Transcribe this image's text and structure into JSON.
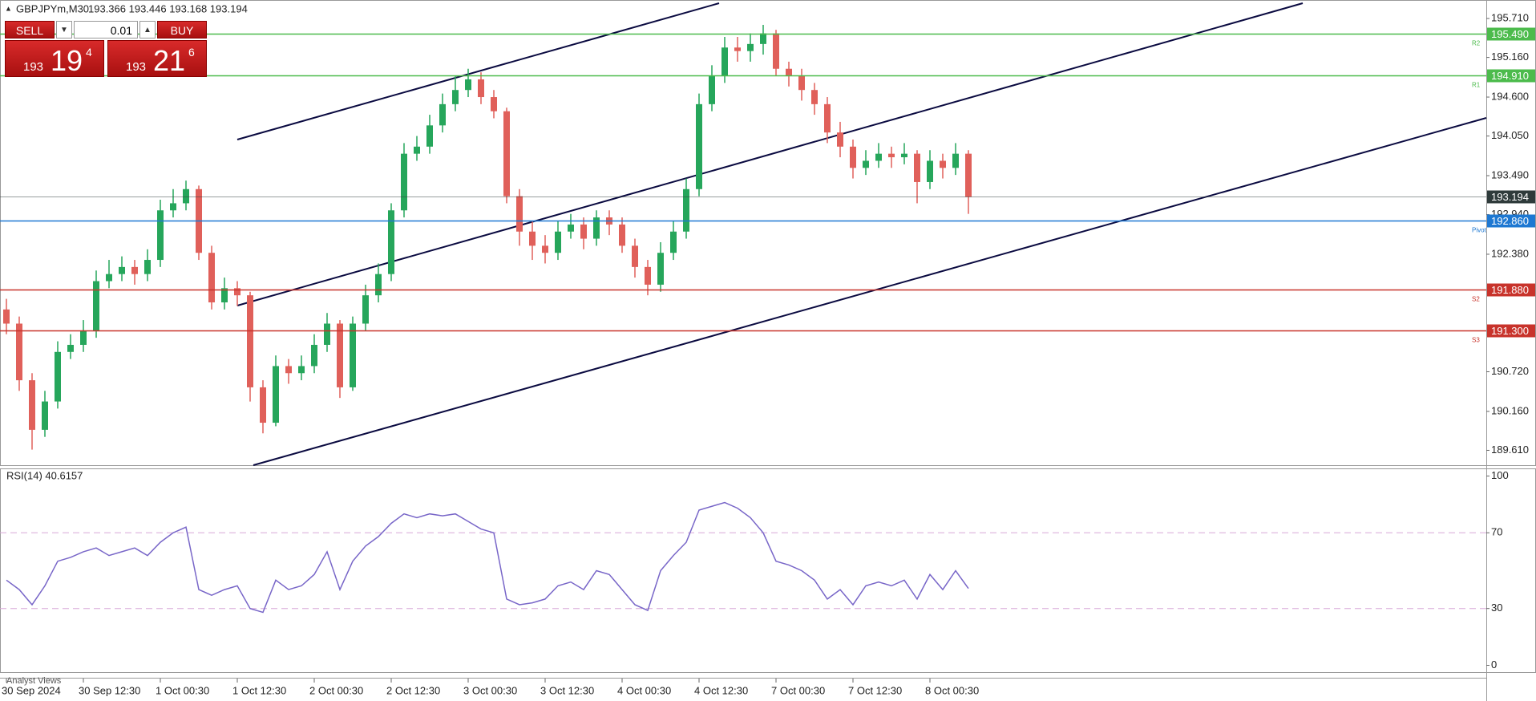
{
  "toolbar": {
    "symbol": "GBPJPYm,M30",
    "quote": "193.366 193.446 193.168 193.194"
  },
  "trade_panel": {
    "sell": "SELL",
    "lot": "0.01",
    "buy": "BUY",
    "bid": {
      "big": "193",
      "main": "19",
      "pip": "4"
    },
    "ask": {
      "big": "193",
      "main": "21",
      "pip": "6"
    }
  },
  "bottom_tab": "Analyst Views",
  "chart_data": [
    {
      "type": "candlestick",
      "categories": [
        "30 Sep 2024",
        null,
        null,
        null,
        null,
        null,
        "30 Sep 12:30",
        null,
        null,
        null,
        null,
        null,
        "1 Oct 00:30",
        null,
        null,
        null,
        null,
        null,
        "1 Oct 12:30",
        null,
        null,
        null,
        null,
        null,
        "2 Oct 00:30",
        null,
        null,
        null,
        null,
        null,
        "2 Oct 12:30",
        null,
        null,
        null,
        null,
        null,
        "3 Oct 00:30",
        null,
        null,
        null,
        null,
        null,
        "3 Oct 12:30",
        null,
        null,
        null,
        null,
        null,
        "4 Oct 00:30",
        null,
        null,
        null,
        null,
        null,
        "4 Oct 12:30",
        null,
        null,
        null,
        null,
        null,
        "7 Oct 00:30",
        null,
        null,
        null,
        null,
        null,
        "7 Oct 12:30",
        null,
        null,
        null,
        null,
        null,
        "8 Oct 00:30",
        null,
        null,
        null
      ],
      "open": [
        191.6,
        191.4,
        190.6,
        189.9,
        190.3,
        191.0,
        191.1,
        191.3,
        192.0,
        192.1,
        192.2,
        192.1,
        192.3,
        193.0,
        193.1,
        193.3,
        192.4,
        191.7,
        191.9,
        191.8,
        190.5,
        190.0,
        190.8,
        190.7,
        190.8,
        191.1,
        191.4,
        190.5,
        191.4,
        191.8,
        192.1,
        193.0,
        193.8,
        193.9,
        194.2,
        194.5,
        194.7,
        194.85,
        194.6,
        194.4,
        193.2,
        192.7,
        192.5,
        192.4,
        192.7,
        192.8,
        192.6,
        192.9,
        192.8,
        192.5,
        192.2,
        191.95,
        192.4,
        192.7,
        193.3,
        194.5,
        194.9,
        195.3,
        195.25,
        195.35,
        195.5,
        195.0,
        194.9,
        194.7,
        194.5,
        194.1,
        193.9,
        193.6,
        193.7,
        193.8,
        193.75,
        193.8,
        193.4,
        193.7,
        193.6,
        193.8
      ],
      "high": [
        191.75,
        191.5,
        190.7,
        190.45,
        191.15,
        191.25,
        191.45,
        192.15,
        192.3,
        192.35,
        192.3,
        192.45,
        193.15,
        193.3,
        193.42,
        193.35,
        192.5,
        192.05,
        192.0,
        191.85,
        190.6,
        190.95,
        190.9,
        190.95,
        191.25,
        191.55,
        191.45,
        191.5,
        191.95,
        192.25,
        193.1,
        193.95,
        194.05,
        194.35,
        194.65,
        194.9,
        195.0,
        194.95,
        194.7,
        194.45,
        193.3,
        192.85,
        192.65,
        192.85,
        192.95,
        192.9,
        193.0,
        193.0,
        192.9,
        192.6,
        192.3,
        192.55,
        192.85,
        193.45,
        194.65,
        195.05,
        195.45,
        195.45,
        195.5,
        195.62,
        195.55,
        195.1,
        195.0,
        194.8,
        194.6,
        194.25,
        194.0,
        193.85,
        193.95,
        193.9,
        193.95,
        193.85,
        193.85,
        193.8,
        193.95,
        193.85
      ],
      "low": [
        191.25,
        190.45,
        189.62,
        189.8,
        190.2,
        190.9,
        191.0,
        191.2,
        191.9,
        192.0,
        191.95,
        192.0,
        192.2,
        192.9,
        193.0,
        192.3,
        191.6,
        191.6,
        191.65,
        190.3,
        189.85,
        189.95,
        190.55,
        190.6,
        190.7,
        191.0,
        190.35,
        190.45,
        191.3,
        191.7,
        192.0,
        192.9,
        193.7,
        193.8,
        194.1,
        194.4,
        194.6,
        194.5,
        194.3,
        193.1,
        192.5,
        192.3,
        192.25,
        192.3,
        192.6,
        192.45,
        192.5,
        192.65,
        192.4,
        192.05,
        191.8,
        191.85,
        192.3,
        192.6,
        193.2,
        194.4,
        194.8,
        195.1,
        195.1,
        195.2,
        194.9,
        194.75,
        194.55,
        194.35,
        193.95,
        193.75,
        193.45,
        193.5,
        193.6,
        193.6,
        193.65,
        193.1,
        193.3,
        193.45,
        193.5,
        192.95
      ],
      "close": [
        191.4,
        190.6,
        189.9,
        190.3,
        191.0,
        191.1,
        191.3,
        192.0,
        192.1,
        192.2,
        192.1,
        192.3,
        193.0,
        193.1,
        193.3,
        192.4,
        191.7,
        191.9,
        191.8,
        190.5,
        190.0,
        190.8,
        190.7,
        190.8,
        191.1,
        191.4,
        190.5,
        191.4,
        191.8,
        192.1,
        193.0,
        193.8,
        193.9,
        194.2,
        194.5,
        194.7,
        194.85,
        194.6,
        194.4,
        193.2,
        192.7,
        192.5,
        192.4,
        192.7,
        192.8,
        192.6,
        192.9,
        192.8,
        192.5,
        192.2,
        191.95,
        192.4,
        192.7,
        193.3,
        194.5,
        194.9,
        195.3,
        195.25,
        195.35,
        195.5,
        195.0,
        194.9,
        194.7,
        194.5,
        194.1,
        193.9,
        193.6,
        193.7,
        193.8,
        193.75,
        193.8,
        193.4,
        193.7,
        193.6,
        193.8,
        193.19
      ],
      "up_color": "#26a65b",
      "down_color": "#e0605a",
      "ylim": [
        189.4,
        195.96
      ],
      "yticks": [
        {
          "value": 195.71,
          "label": "195.710"
        },
        {
          "value": 195.16,
          "label": "195.160"
        },
        {
          "value": 194.6,
          "label": "194.600"
        },
        {
          "value": 194.05,
          "label": "194.050"
        },
        {
          "value": 193.49,
          "label": "193.490"
        },
        {
          "value": 192.94,
          "label": "192.940"
        },
        {
          "value": 192.38,
          "label": "192.380"
        },
        {
          "value": 190.72,
          "label": "190.720"
        },
        {
          "value": 190.16,
          "label": "190.160"
        },
        {
          "value": 189.61,
          "label": "189.610"
        }
      ],
      "grid": false,
      "levels": [
        {
          "value": 195.49,
          "label": "195.490",
          "name": "R2",
          "color": "#4cbb4c"
        },
        {
          "value": 194.91,
          "label": "194.910",
          "name": "R1",
          "color": "#4cbb4c"
        },
        {
          "value": 193.194,
          "label": "193.194",
          "color": "#2f3b3b"
        },
        {
          "value": 192.86,
          "label": "192.860",
          "name": "Pivot",
          "color": "#1e78d2"
        },
        {
          "value": 191.88,
          "label": "191.880",
          "name": "S2",
          "color": "#c8332b"
        },
        {
          "value": 191.3,
          "label": "191.300",
          "name": "S3",
          "color": "#c8332b"
        }
      ]
    },
    {
      "type": "line",
      "title": "RSI(14) 40.6157",
      "series": [
        {
          "color": "#7866c8",
          "values": [
            45,
            40,
            32,
            42,
            55,
            57,
            60,
            62,
            58,
            60,
            62,
            58,
            65,
            70,
            73,
            40,
            37,
            40,
            42,
            30,
            28,
            45,
            40,
            42,
            48,
            60,
            40,
            55,
            63,
            68,
            75,
            80,
            78,
            80,
            79,
            80,
            76,
            72,
            70,
            35,
            32,
            33,
            35,
            42,
            44,
            40,
            50,
            48,
            40,
            32,
            29,
            50,
            58,
            65,
            82,
            84,
            86,
            83,
            78,
            70,
            55,
            53,
            50,
            45,
            35,
            40,
            32,
            42,
            44,
            42,
            45,
            35,
            48,
            40,
            50,
            40.6
          ]
        }
      ],
      "ylim": [
        -3.6,
        103.6
      ],
      "yticks": [
        0,
        30,
        70,
        100
      ],
      "guide_levels": [
        30,
        70
      ],
      "guide_color": "#d8a8d8"
    }
  ]
}
